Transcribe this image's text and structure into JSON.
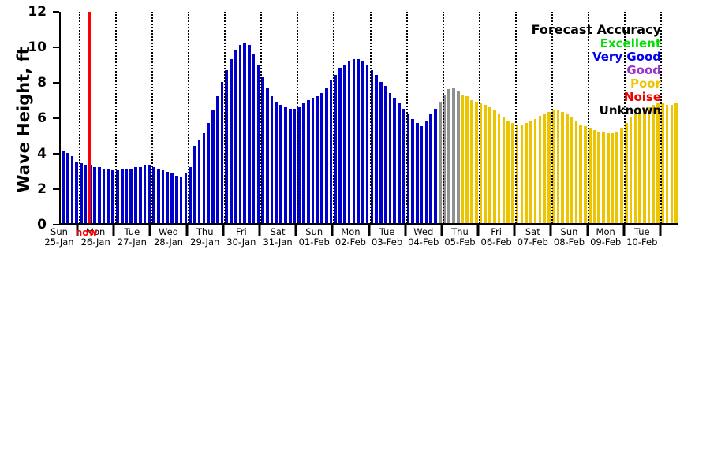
{
  "chart_data": {
    "type": "bar",
    "title": "",
    "xlabel": "",
    "ylabel": "Wave Height, ft",
    "ylim": [
      0,
      12
    ],
    "yticks": [
      0,
      2,
      4,
      6,
      8,
      10,
      12
    ],
    "grid": "vertical-dotted-per-day",
    "bars_per_day": 8,
    "days": [
      {
        "weekday": "Sun",
        "date": "25-Jan"
      },
      {
        "weekday": "Mon",
        "date": "26-Jan"
      },
      {
        "weekday": "Tue",
        "date": "27-Jan"
      },
      {
        "weekday": "Wed",
        "date": "28-Jan"
      },
      {
        "weekday": "Thu",
        "date": "29-Jan"
      },
      {
        "weekday": "Fri",
        "date": "30-Jan"
      },
      {
        "weekday": "Sat",
        "date": "31-Jan"
      },
      {
        "weekday": "Sun",
        "date": "01-Feb"
      },
      {
        "weekday": "Mon",
        "date": "02-Feb"
      },
      {
        "weekday": "Tue",
        "date": "03-Feb"
      },
      {
        "weekday": "Wed",
        "date": "04-Feb"
      },
      {
        "weekday": "Thu",
        "date": "05-Feb"
      },
      {
        "weekday": "Fri",
        "date": "06-Feb"
      },
      {
        "weekday": "Sat",
        "date": "07-Feb"
      },
      {
        "weekday": "Sun",
        "date": "08-Feb"
      },
      {
        "weekday": "Mon",
        "date": "09-Feb"
      },
      {
        "weekday": "Tue",
        "date": "10-Feb"
      }
    ],
    "values": [
      4.1,
      4.0,
      3.8,
      3.5,
      3.4,
      3.3,
      3.3,
      3.2,
      3.2,
      3.1,
      3.1,
      3.0,
      3.0,
      3.1,
      3.1,
      3.1,
      3.2,
      3.2,
      3.3,
      3.3,
      3.2,
      3.1,
      3.0,
      2.9,
      2.8,
      2.7,
      2.6,
      2.8,
      3.2,
      4.4,
      4.7,
      5.1,
      5.7,
      6.4,
      7.2,
      8.0,
      8.7,
      9.3,
      9.8,
      10.1,
      10.2,
      10.1,
      9.6,
      9.0,
      8.3,
      7.7,
      7.2,
      6.9,
      6.7,
      6.6,
      6.5,
      6.5,
      6.6,
      6.8,
      7.0,
      7.1,
      7.2,
      7.4,
      7.7,
      8.1,
      8.4,
      8.8,
      9.0,
      9.2,
      9.3,
      9.3,
      9.2,
      9.0,
      8.7,
      8.4,
      8.0,
      7.8,
      7.4,
      7.1,
      6.8,
      6.5,
      6.2,
      5.9,
      5.7,
      5.5,
      5.8,
      6.2,
      6.5,
      6.9,
      7.3,
      7.6,
      7.7,
      7.5,
      7.3,
      7.2,
      7.0,
      6.9,
      6.8,
      6.7,
      6.6,
      6.4,
      6.2,
      6.0,
      5.8,
      5.7,
      5.6,
      5.6,
      5.7,
      5.8,
      5.9,
      6.1,
      6.2,
      6.3,
      6.4,
      6.4,
      6.3,
      6.2,
      6.0,
      5.8,
      5.6,
      5.5,
      5.4,
      5.3,
      5.2,
      5.2,
      5.1,
      5.1,
      5.2,
      5.4,
      5.7,
      6.0,
      6.2,
      6.4,
      6.5,
      6.6,
      6.7,
      6.8,
      6.8,
      6.7,
      6.7,
      6.8
    ],
    "segments": [
      {
        "label": "Very Good",
        "color_key": "very_good",
        "start": 0,
        "end": 83
      },
      {
        "label": "Unknown",
        "color_key": "unknown",
        "start": 83,
        "end": 88
      },
      {
        "label": "Poor",
        "color_key": "poor",
        "start": 88,
        "end": 136
      }
    ],
    "colors": {
      "very_good": "#0000CD",
      "unknown": "#909090",
      "poor": "#EDC400"
    },
    "now_line": {
      "label": "now",
      "color": "#FF0000",
      "bar_index": 6
    },
    "legend": {
      "title": "Forecast Accuracy",
      "position": "top-right",
      "entries": [
        {
          "label": "Excellent",
          "color": "#00DD00"
        },
        {
          "label": "Very Good",
          "color": "#0000EE"
        },
        {
          "label": "Good",
          "color": "#9932CC"
        },
        {
          "label": "Poor",
          "color": "#EDC400"
        },
        {
          "label": "Noise",
          "color": "#EE0000"
        },
        {
          "label": "Unknown",
          "color": "#000000"
        }
      ]
    }
  }
}
